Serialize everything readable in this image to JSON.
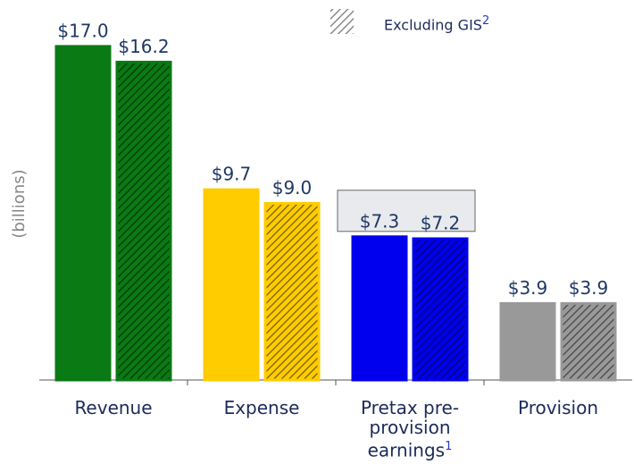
{
  "chart_data": {
    "type": "bar",
    "y_label": "(billions)",
    "categories": [
      "Revenue",
      "Expense",
      "Pretax pre-provision earnings",
      "Provision"
    ],
    "category_footnote": {
      "index": 2,
      "text": "1"
    },
    "colors": [
      "#0a7a14",
      "#ffcc00",
      "#0000ee",
      "#999999"
    ],
    "series": [
      {
        "values": [
          17.0,
          9.7,
          7.3,
          3.9
        ],
        "value_labels": [
          "$17.0",
          "$9.7",
          "$7.3",
          "$3.9"
        ],
        "hatch": false
      },
      {
        "name": "Excluding GIS",
        "footnote": "2",
        "values": [
          16.2,
          9.0,
          7.2,
          3.9
        ],
        "value_labels": [
          "$16.2",
          "$9.0",
          "$7.2",
          "$3.9"
        ],
        "hatch": true
      }
    ],
    "highlight_category": 2,
    "ylim": [
      0,
      19
    ]
  }
}
